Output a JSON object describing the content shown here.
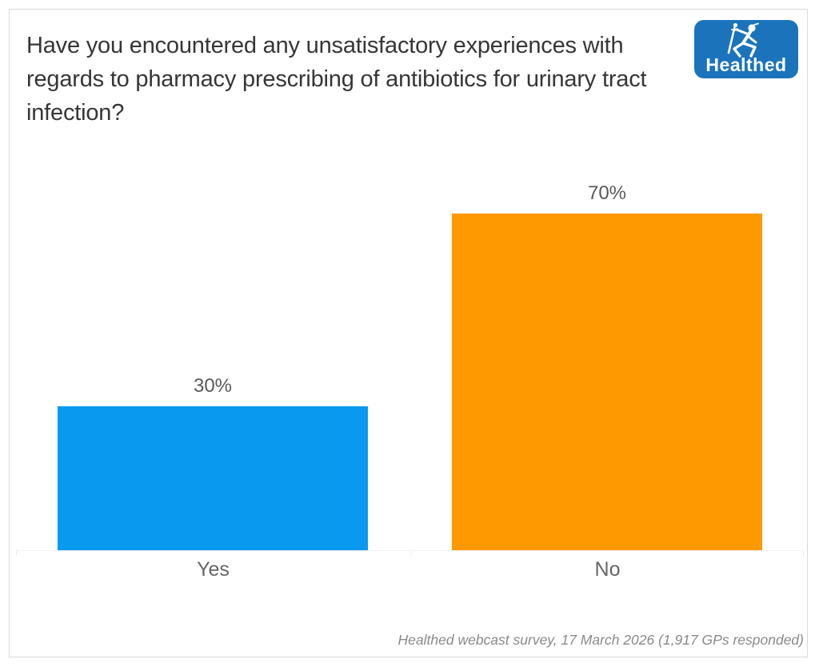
{
  "header": {
    "title": "Have you encountered any unsatisfactory experiences with regards to pharmacy prescribing of antibiotics for urinary tract infection?"
  },
  "logo": {
    "text": "Healthed",
    "background": "#1b74bb",
    "figure_icon": "hermes-runner-icon"
  },
  "chart_data": {
    "type": "bar",
    "title": "Have you encountered any unsatisfactory experiences with regards to pharmacy prescribing of antibiotics for urinary tract infection?",
    "categories": [
      "Yes",
      "No"
    ],
    "values": [
      30,
      70
    ],
    "value_labels": [
      "30%",
      "70%"
    ],
    "bar_colors": [
      "#099af0",
      "#ff9902"
    ],
    "xlabel": "",
    "ylabel": "",
    "ylim": [
      0,
      100
    ],
    "grid": false,
    "legend": false,
    "annotation": "Healthed webcast survey, 17 March 2026 (1,917 GPs responded)"
  },
  "footer": {
    "source": "Healthed webcast survey, 17 March 2026 (1,917 GPs responded)"
  },
  "colors": {
    "frame_border": "#d9d9d9",
    "title_text": "#363636",
    "value_label_text": "#585858",
    "category_label_text": "#666666",
    "footer_text": "#8a8a8a",
    "axis_line": "#f2f2f2",
    "bar_yes": "#099af0",
    "bar_no": "#ff9902",
    "logo_blue": "#1b74bb"
  }
}
